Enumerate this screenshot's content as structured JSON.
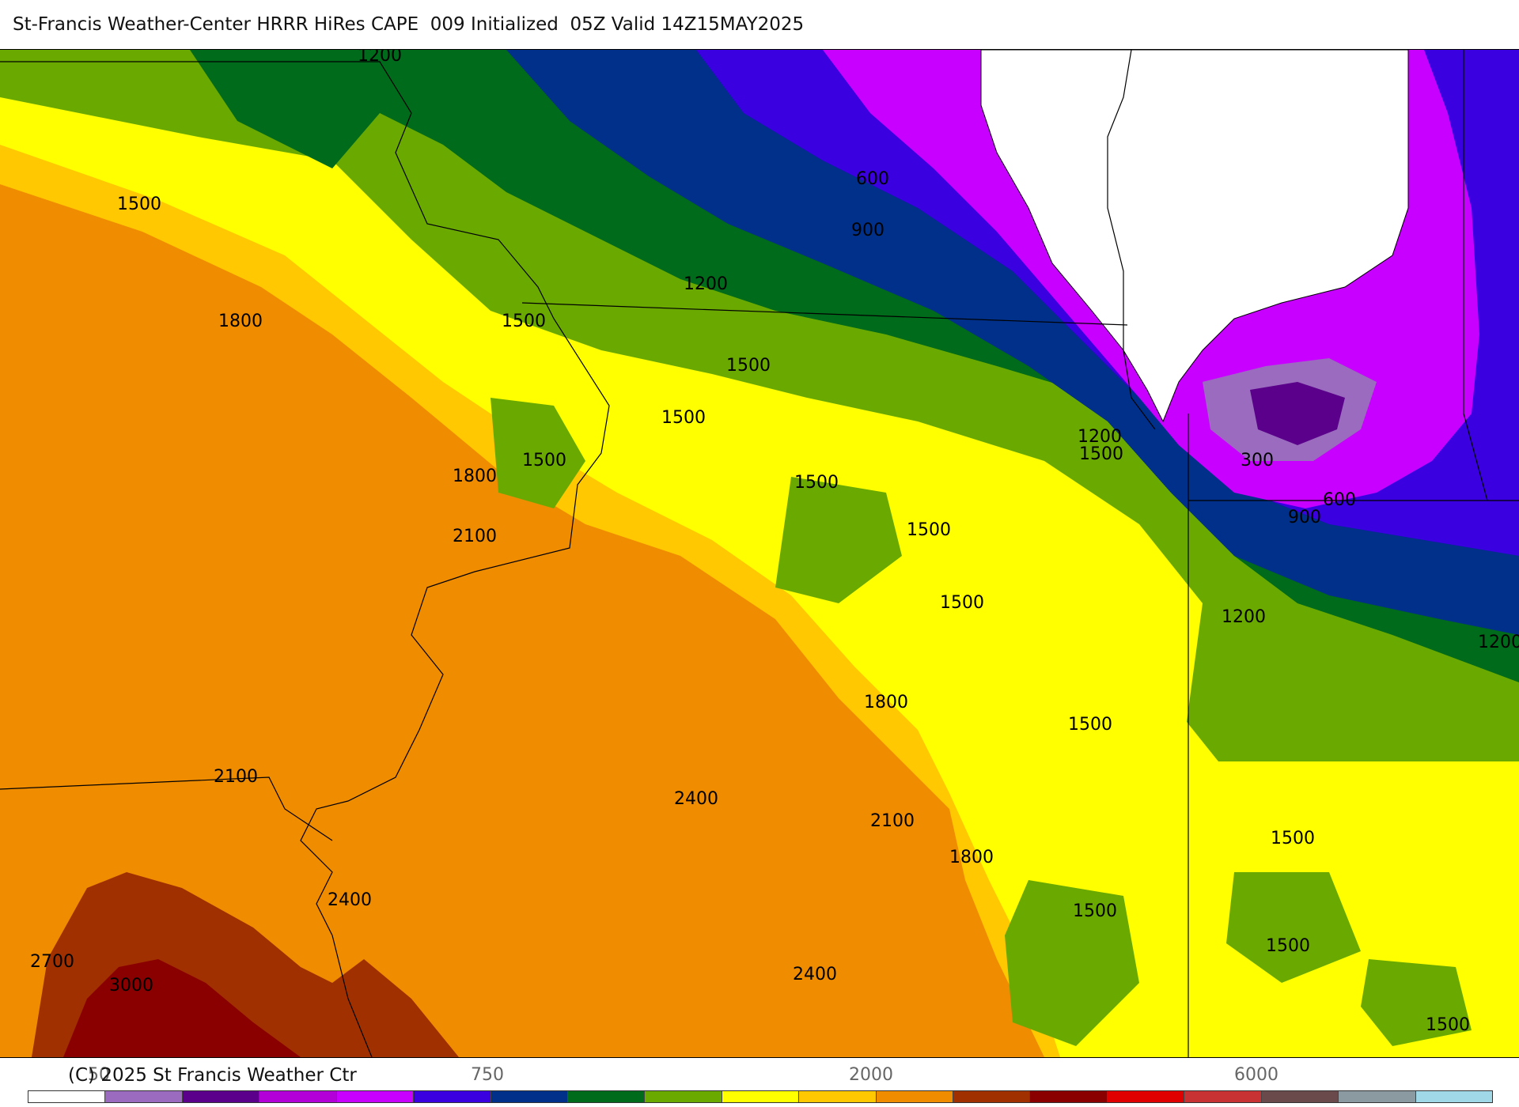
{
  "header": {
    "title": "St-Francis Weather-Center HRRR HiRes CAPE  009 Initialized  05Z Valid 14Z15MAY2025"
  },
  "footer": {
    "copyright": "(C) 2025 St Francis Weather Ctr"
  },
  "map": {
    "product": "CAPE",
    "contour_labels": [
      "1200",
      "1500",
      "1800",
      "600",
      "900",
      "1200",
      "1500",
      "1500",
      "1500",
      "1500",
      "1800",
      "1500",
      "2100",
      "1500",
      "1500",
      "1200",
      "1500",
      "300",
      "600",
      "900",
      "1200",
      "1200",
      "1800",
      "1500",
      "2100",
      "2400",
      "2100",
      "1800",
      "1500",
      "1500",
      "1500",
      "2400",
      "2700",
      "3000",
      "2400",
      "1500"
    ]
  },
  "legend": {
    "tick_labels": [
      "50",
      "750",
      "2000",
      "6000"
    ],
    "colors": [
      "#ffffff",
      "#9b6bbf",
      "#5a008a",
      "#b400d8",
      "#c800ff",
      "#3a00e0",
      "#00308a",
      "#006b1a",
      "#6aaa00",
      "#ffff00",
      "#ffc800",
      "#f08c00",
      "#a03000",
      "#8a0000",
      "#e00000",
      "#c83232",
      "#6a4a4a",
      "#8a9aa0",
      "#a0d8e8"
    ]
  }
}
